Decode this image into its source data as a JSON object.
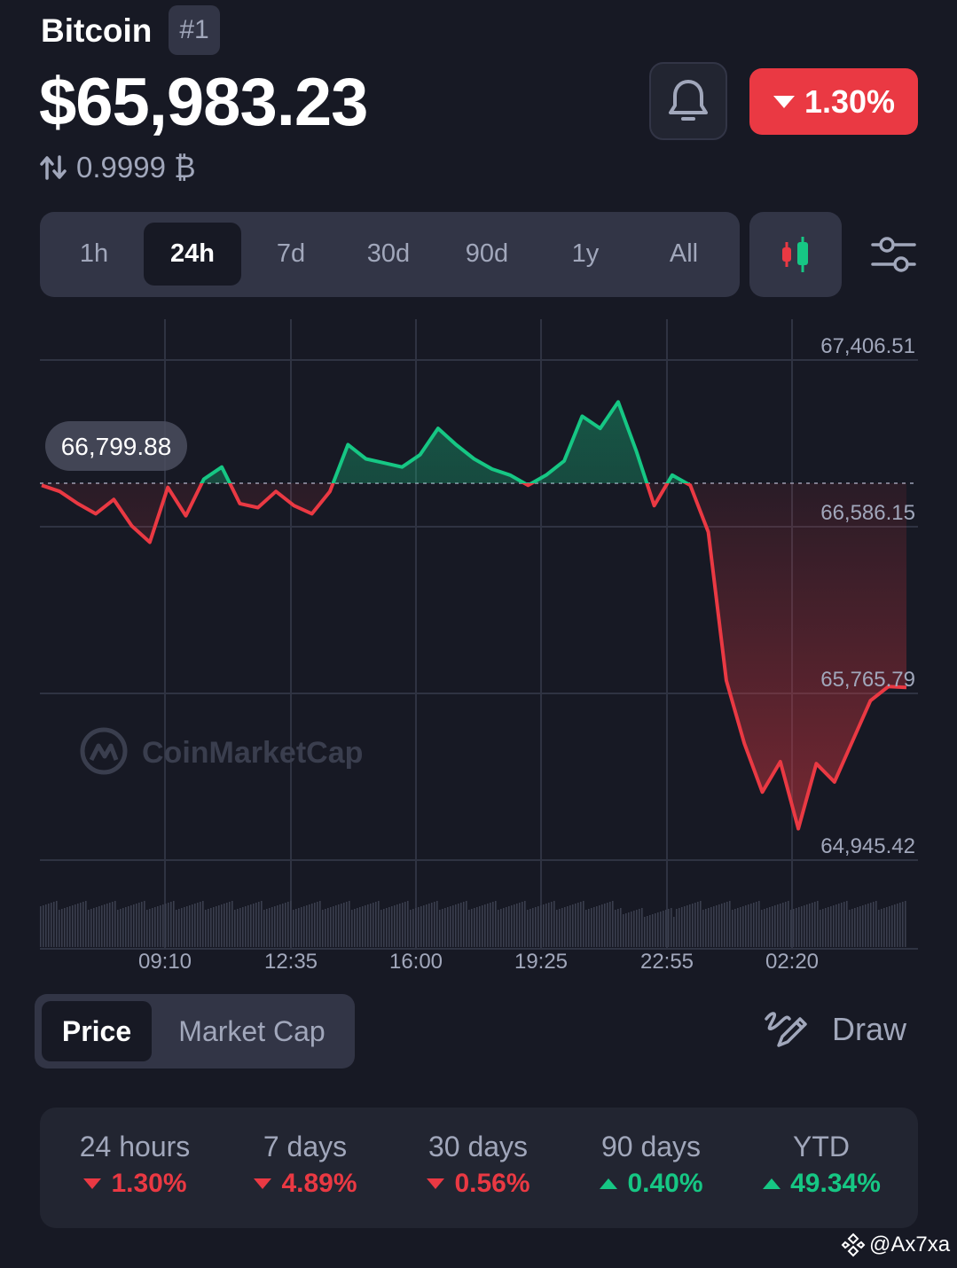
{
  "header": {
    "coin_name": "Bitcoin",
    "rank": "#1",
    "price": "$65,983.23",
    "btc_price": "0.9999 ₿",
    "change_24h": "1.30%",
    "change_direction": "down"
  },
  "timeframe_tabs": [
    {
      "label": "1h",
      "active": false
    },
    {
      "label": "24h",
      "active": true
    },
    {
      "label": "7d",
      "active": false
    },
    {
      "label": "30d",
      "active": false
    },
    {
      "label": "90d",
      "active": false
    },
    {
      "label": "1y",
      "active": false
    },
    {
      "label": "All",
      "active": false
    }
  ],
  "chart_data": {
    "type": "area",
    "y_ticks": [
      "67,406.51",
      "66,586.15",
      "65,765.79",
      "64,945.42"
    ],
    "x_ticks": [
      "09:10",
      "12:35",
      "16:00",
      "19:25",
      "22:55",
      "02:20"
    ],
    "reference_value": 66799.88,
    "reference_label": "66,799.88",
    "watermark": "CoinMarketCap",
    "ylim": [
      64945.42,
      67406.51
    ],
    "colors": {
      "up": "#16c784",
      "down": "#ea3943",
      "grid": "#2f3342",
      "reference": "#7a7f91"
    },
    "x": [
      0,
      0.5,
      1,
      1.5,
      2,
      2.5,
      3,
      3.5,
      4,
      4.5,
      5,
      5.5,
      6,
      6.5,
      7,
      7.5,
      8,
      8.5,
      9,
      9.5,
      10,
      10.5,
      11,
      11.5,
      12,
      12.5,
      13,
      13.5,
      14,
      14.5,
      15,
      15.5,
      16,
      16.5,
      17,
      17.5,
      18,
      18.5,
      19,
      19.5,
      20,
      20.5,
      21,
      21.5,
      22,
      22.5,
      23,
      23.5,
      24
    ],
    "values": [
      66790,
      66760,
      66700,
      66650,
      66720,
      66590,
      66510,
      66780,
      66640,
      66820,
      66880,
      66700,
      66680,
      66760,
      66690,
      66650,
      66760,
      66990,
      66920,
      66900,
      66880,
      66940,
      67070,
      66990,
      66920,
      66870,
      66840,
      66790,
      66840,
      66910,
      67130,
      67070,
      67200,
      66960,
      66690,
      66840,
      66790,
      66560,
      65830,
      65520,
      65280,
      65430,
      65100,
      65420,
      65330,
      65530,
      65730,
      65800,
      65795
    ],
    "volume_note": "volume bars along bottom"
  },
  "chart_toggle": [
    {
      "label": "Price",
      "active": true
    },
    {
      "label": "Market Cap",
      "active": false
    }
  ],
  "draw_label": "Draw",
  "stats": [
    {
      "label": "24 hours",
      "value": "1.30%",
      "dir": "down"
    },
    {
      "label": "7 days",
      "value": "4.89%",
      "dir": "down"
    },
    {
      "label": "30 days",
      "value": "0.56%",
      "dir": "down"
    },
    {
      "label": "90 days",
      "value": "0.40%",
      "dir": "up"
    },
    {
      "label": "YTD",
      "value": "49.34%",
      "dir": "up"
    }
  ],
  "watermark_handle": "@Ax7xa"
}
